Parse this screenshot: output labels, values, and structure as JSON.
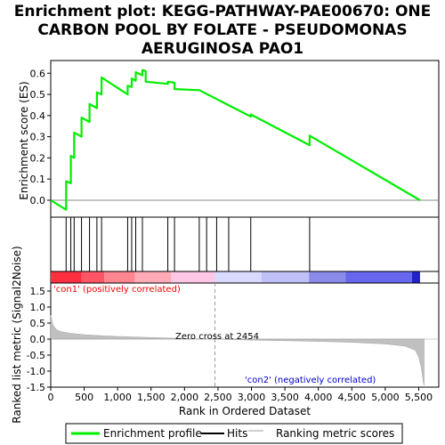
{
  "chart_data": {
    "type": "line",
    "title_lines": [
      "Enrichment plot: KEGG-PATHWAY-PAE00670: ONE",
      "CARBON POOL BY FOLATE - PSEUDOMONAS",
      "AERUGINOSA PAO1"
    ],
    "xlabel": "Rank in Ordered Dataset",
    "ylabel_top": "Enrichment score (ES)",
    "ylabel_bottom": "Ranked list metric (Signal2Noise)",
    "xlim": [
      0,
      5800
    ],
    "es_ylim": [
      -0.08,
      0.66
    ],
    "metric_ylim": [
      -1.5,
      1.75
    ],
    "x_ticks": [
      0,
      500,
      1000,
      1500,
      2000,
      2500,
      3000,
      3500,
      4000,
      4500,
      5000,
      5500
    ],
    "x_tick_labels": [
      "0",
      "500",
      "1,000",
      "1,500",
      "2,000",
      "2,500",
      "3,000",
      "3,500",
      "4,000",
      "4,500",
      "5,000",
      "5,500"
    ],
    "es_ticks": [
      0.0,
      0.1,
      0.2,
      0.3,
      0.4,
      0.5,
      0.6
    ],
    "es_tick_labels": [
      "0.0",
      "0.1",
      "0.2",
      "0.3",
      "0.4",
      "0.5",
      "0.6"
    ],
    "metric_ticks": [
      -1.5,
      -1.0,
      -0.5,
      0.0,
      0.5,
      1.0,
      1.5
    ],
    "metric_tick_labels": [
      "-1.5",
      "-1.0",
      "-0.5",
      "0.0",
      "0.5",
      "1.0",
      "1.5"
    ],
    "enrichment_profile": {
      "name": "Enrichment profile",
      "color": "#00ee00",
      "x": [
        0,
        230,
        230,
        300,
        300,
        350,
        350,
        460,
        460,
        580,
        580,
        690,
        690,
        760,
        760,
        1150,
        1150,
        1210,
        1210,
        1270,
        1270,
        1370,
        1370,
        1420,
        1420,
        1750,
        1750,
        1850,
        1850,
        2220,
        2220,
        2990,
        2990,
        3870,
        3870,
        5520
      ],
      "y": [
        0.0,
        -0.045,
        0.09,
        0.08,
        0.21,
        0.2,
        0.32,
        0.3,
        0.39,
        0.37,
        0.455,
        0.435,
        0.51,
        0.5,
        0.58,
        0.5,
        0.54,
        0.535,
        0.575,
        0.565,
        0.605,
        0.59,
        0.615,
        0.61,
        0.56,
        0.55,
        0.56,
        0.555,
        0.525,
        0.52,
        0.52,
        0.395,
        0.405,
        0.26,
        0.305,
        0.0
      ]
    },
    "hits": {
      "name": "Hits",
      "color": "#000000",
      "x": [
        230,
        300,
        350,
        460,
        580,
        690,
        760,
        1150,
        1210,
        1270,
        1370,
        1750,
        1850,
        2220,
        2330,
        2480,
        2660,
        2990,
        3870
      ]
    },
    "ranking_metric": {
      "name": "Ranking metric scores",
      "color": "#c0c0c0",
      "x": [
        0,
        30,
        80,
        150,
        300,
        500,
        800,
        1200,
        1800,
        2454,
        3000,
        3800,
        4500,
        5000,
        5300,
        5450,
        5500,
        5540,
        5570,
        5580
      ],
      "y": [
        0.75,
        0.45,
        0.3,
        0.23,
        0.18,
        0.14,
        0.1,
        0.07,
        0.03,
        0.0,
        -0.03,
        -0.06,
        -0.1,
        -0.15,
        -0.22,
        -0.35,
        -0.55,
        -0.9,
        -1.35,
        -1.45
      ]
    },
    "colorbar": {
      "stops": [
        {
          "from": 0,
          "to": 460,
          "color": "#ff2f3f"
        },
        {
          "from": 460,
          "to": 800,
          "color": "#ff5565"
        },
        {
          "from": 800,
          "to": 1260,
          "color": "#ff8591"
        },
        {
          "from": 1260,
          "to": 1800,
          "color": "#ffabb7"
        },
        {
          "from": 1800,
          "to": 2454,
          "color": "#ffc7e5"
        },
        {
          "from": 2454,
          "to": 3150,
          "color": "#d9d9ff"
        },
        {
          "from": 3150,
          "to": 3860,
          "color": "#c0c0f8"
        },
        {
          "from": 3860,
          "to": 4410,
          "color": "#8a8ae8"
        },
        {
          "from": 4410,
          "to": 5400,
          "color": "#6666ee"
        },
        {
          "from": 5400,
          "to": 5520,
          "color": "#2222cc"
        }
      ]
    },
    "zero_cross": 2454,
    "annotations": {
      "zero_cross_label": "Zero cross at 2454",
      "pos_label": "'con1' (positively correlated)",
      "neg_label": "'con2' (negatively correlated)"
    },
    "legend": [
      {
        "label": "Enrichment profile",
        "color": "#00ee00"
      },
      {
        "label": "Hits",
        "color": "#000000"
      },
      {
        "label": "Ranking metric scores",
        "color": "#c0c0c0"
      }
    ]
  }
}
